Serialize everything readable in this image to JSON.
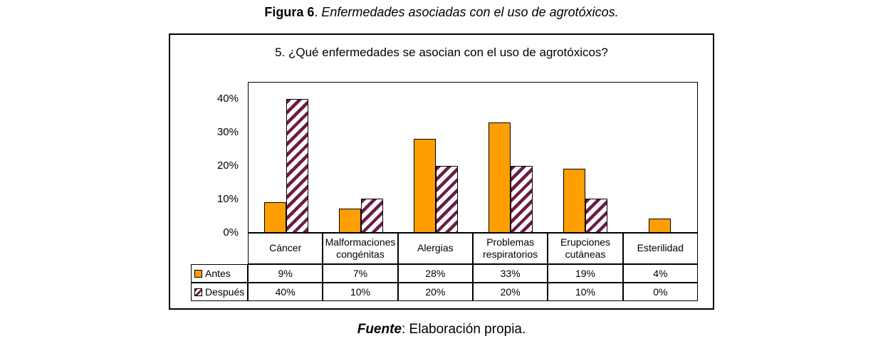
{
  "figure_caption": {
    "bold": "Figura 6",
    "separator": ". ",
    "italic": "Enfermedades asociadas con el uso de agrotóxicos."
  },
  "source_caption": {
    "bold_italic": "Fuente",
    "rest": ": Elaboración propia."
  },
  "chart_data": {
    "type": "bar",
    "title": "5. ¿Qué enfermedades se asocian con el uso de agrotóxicos?",
    "categories": [
      "Cáncer",
      "Malformaciones congénitas",
      "Alergias",
      "Problemas respiratorios",
      "Erupciones cutáneas",
      "Esterilidad"
    ],
    "series": [
      {
        "name": "Antes",
        "style": "solid",
        "values": [
          9,
          7,
          28,
          33,
          19,
          4
        ]
      },
      {
        "name": "Después",
        "style": "hatch",
        "values": [
          40,
          10,
          20,
          20,
          10,
          0
        ]
      }
    ],
    "value_suffix": "%",
    "y_ticks": [
      "0%",
      "10%",
      "20%",
      "30%",
      "40%"
    ],
    "ylim": [
      0,
      45
    ],
    "grid": false,
    "legend_position": "table-left"
  },
  "colors": {
    "antes": "#FF9E00",
    "despues_hatch": "#6E1B45",
    "border": "#000000",
    "background": "#FFFFFF"
  }
}
